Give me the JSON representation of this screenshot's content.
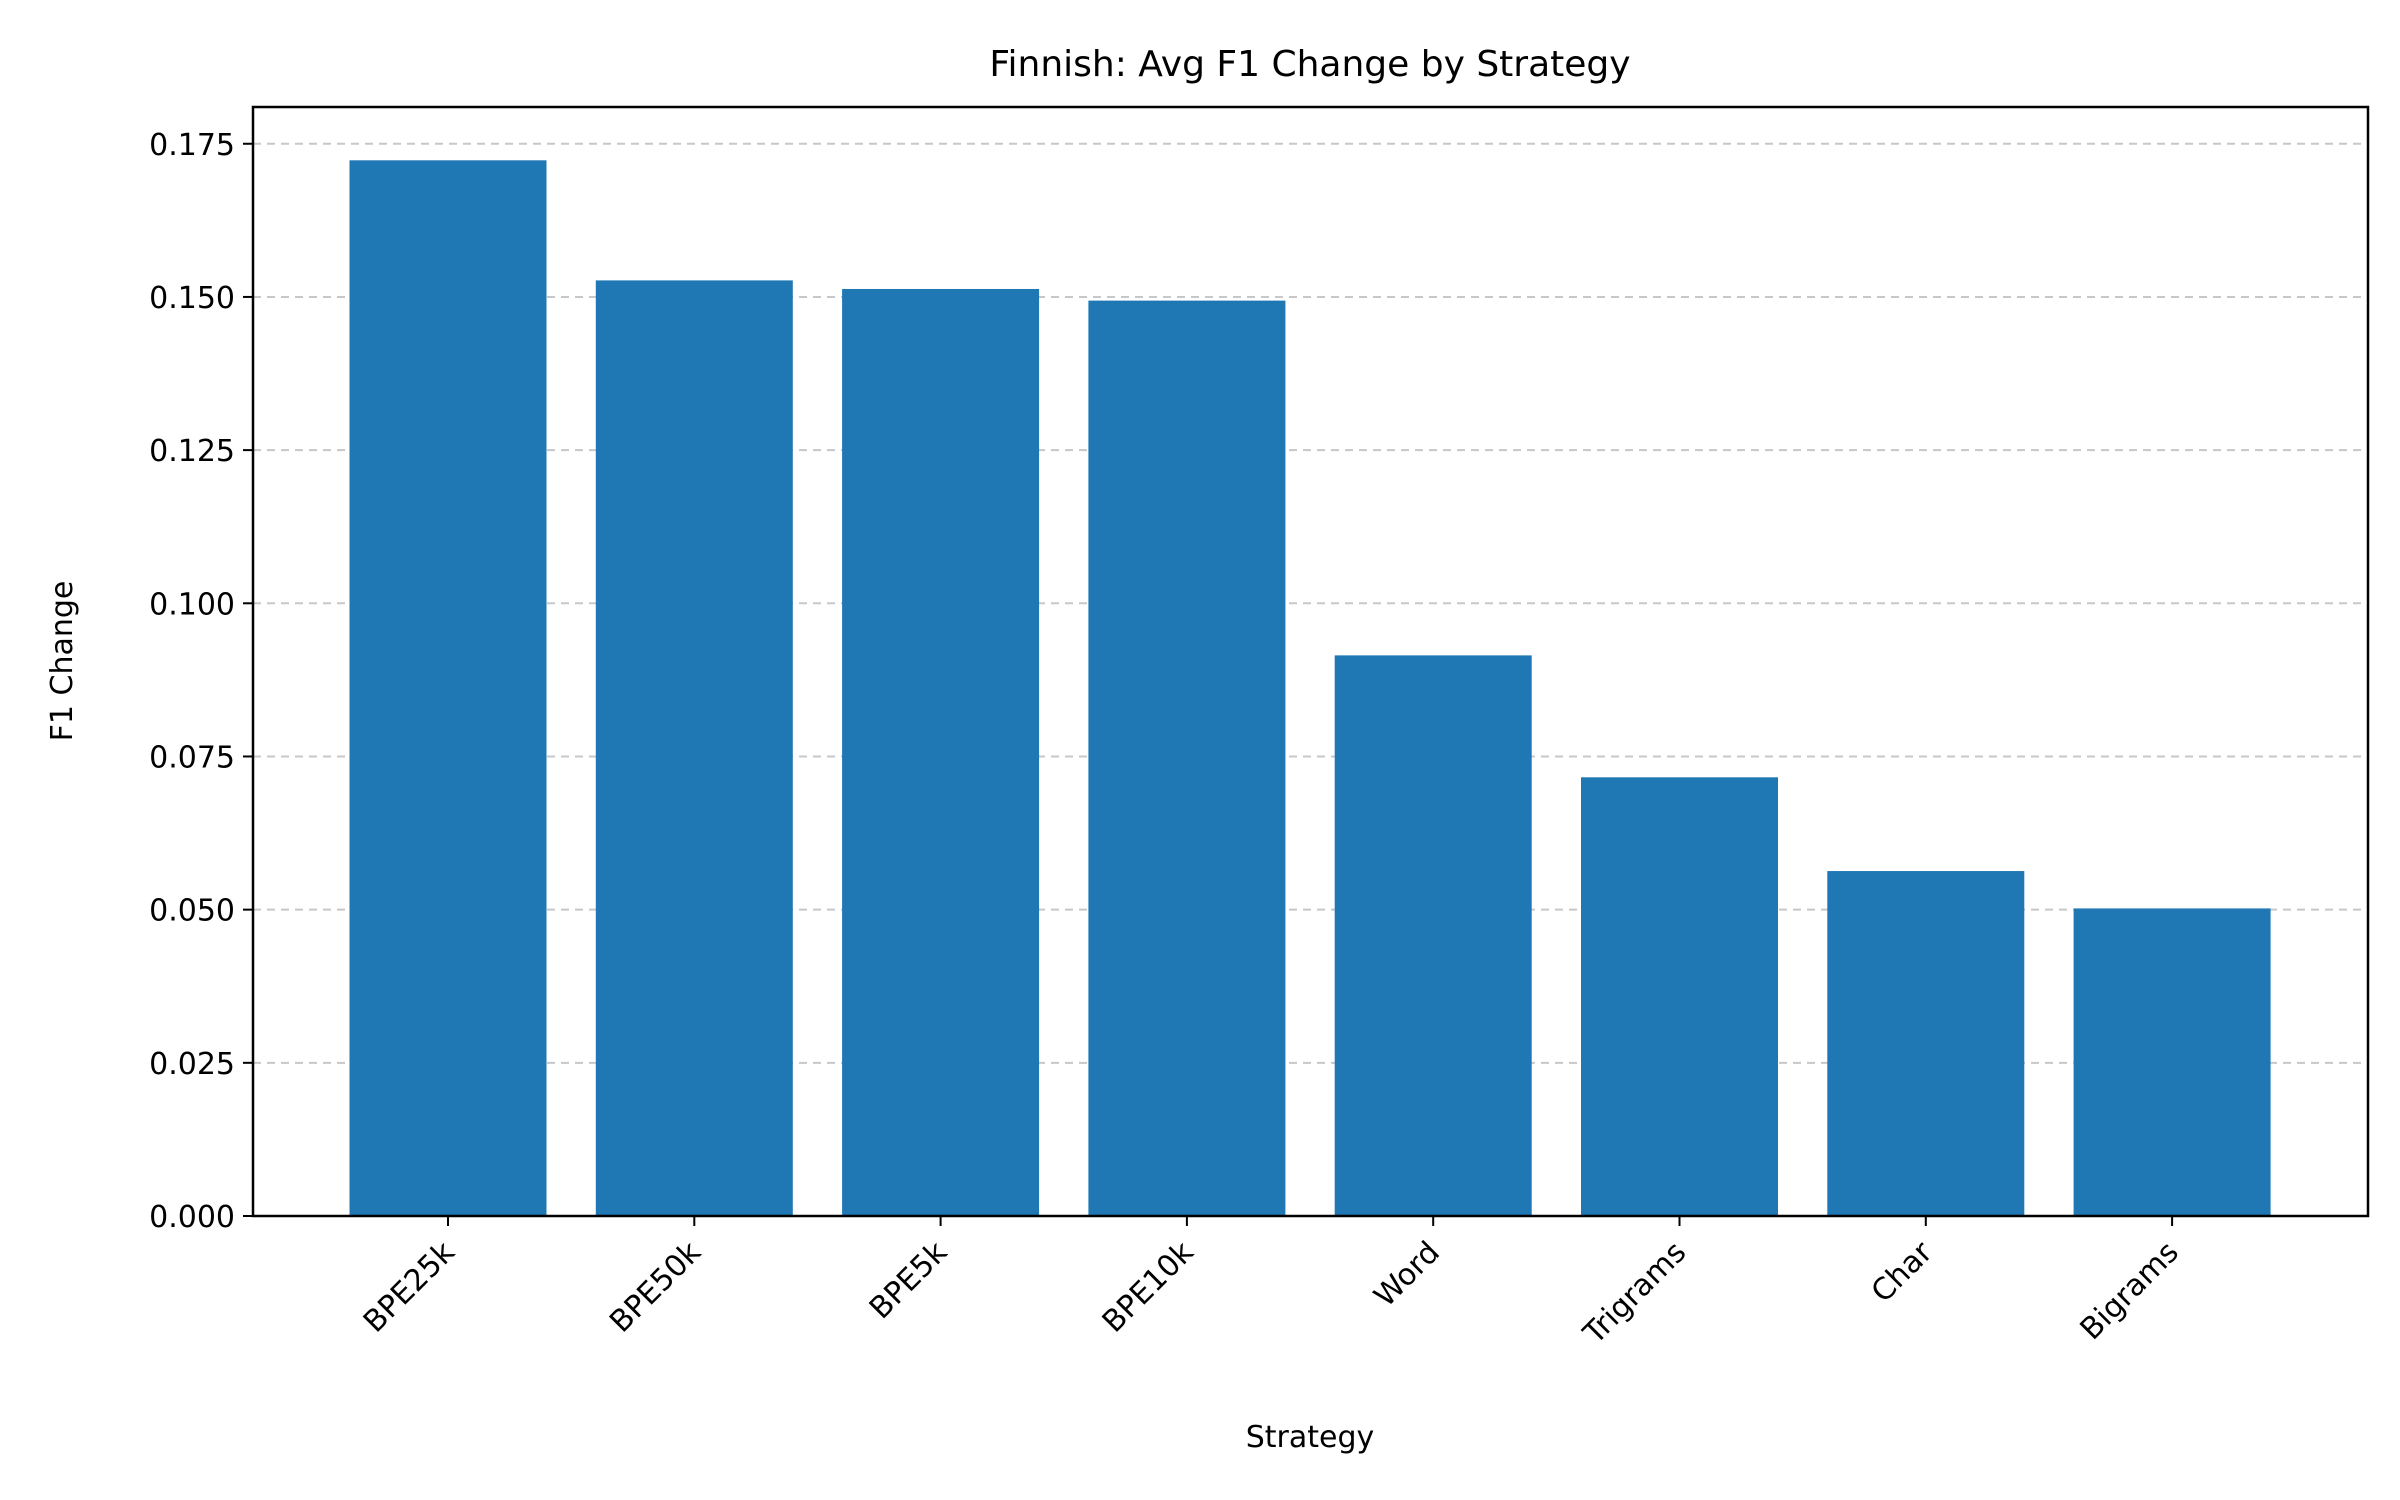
{
  "chart_data": {
    "type": "bar",
    "title": "Finnish: Avg F1 Change by Strategy",
    "xlabel": "Strategy",
    "ylabel": "F1 Change",
    "categories": [
      "BPE25k",
      "BPE50k",
      "BPE5k",
      "BPE10k",
      "Word",
      "Trigrams",
      "Char",
      "Bigrams"
    ],
    "values": [
      0.1723,
      0.1527,
      0.1513,
      0.1494,
      0.0915,
      0.0716,
      0.0563,
      0.0502
    ],
    "ylim": [
      0,
      0.181
    ],
    "yticks": [
      "0.000",
      "0.025",
      "0.050",
      "0.075",
      "0.100",
      "0.125",
      "0.150",
      "0.175"
    ],
    "grid": "y, dashed",
    "bar_color": "#1f77b4",
    "grid_color": "#c8c8c8"
  }
}
